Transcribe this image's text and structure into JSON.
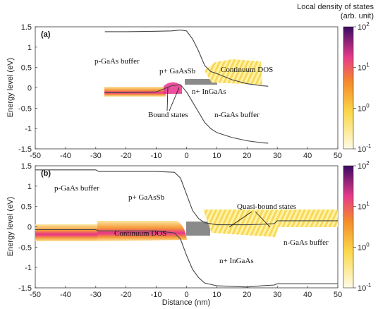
{
  "colorbar": {
    "title": "Local density of states",
    "subtitle": "(arb. unit)",
    "ticks": [
      {
        "base": "10",
        "exp": "2"
      },
      {
        "base": "10",
        "exp": "1"
      },
      {
        "base": "10",
        "exp": "0"
      },
      {
        "base": "10",
        "exp": "-1"
      }
    ]
  },
  "colors": {
    "lowDos": "#fffbd0",
    "midDos": "#f5a623",
    "highDos": "#e8338c",
    "maxDos": "#3a0a5c",
    "bandEdge": "#444444",
    "doping": "#888888"
  },
  "chart_data": [
    {
      "type": "line",
      "panel": "(a)",
      "xlabel": "",
      "ylabel": "Energy level (eV)",
      "xlim": [
        -50,
        50
      ],
      "ylim": [
        -1.5,
        1.5
      ],
      "xticks": [
        -50,
        -40,
        -30,
        -20,
        -10,
        0,
        10,
        20,
        30,
        40,
        50
      ],
      "yticks": [
        -1.5,
        -1,
        -0.5,
        0,
        0.5,
        1,
        1.5
      ],
      "xtick_labels": [
        "-50",
        "-40",
        "-30",
        "-20",
        "-10",
        "0",
        "10",
        "20",
        "30",
        "40",
        "50"
      ],
      "ytick_labels": [
        "-1.5",
        "-1",
        "-0.5",
        "0",
        "0.5",
        "1",
        "1.5"
      ],
      "series": [
        {
          "x": [
            -27,
            -20,
            -10,
            -5,
            -2,
            0,
            2,
            4,
            6,
            8,
            10,
            15,
            20,
            25,
            27
          ],
          "values": [
            1.38,
            1.38,
            1.39,
            1.4,
            1.42,
            1.4,
            1.2,
            0.9,
            0.55,
            0.4,
            0.35,
            0.2,
            0.1,
            0.05,
            0.04
          ]
        },
        {
          "x": [
            -27,
            -20,
            -10,
            -5,
            -2,
            0,
            2,
            4,
            6,
            8,
            10,
            15,
            20,
            25,
            27
          ],
          "values": [
            -0.12,
            -0.12,
            -0.1,
            0.05,
            0.08,
            -0.1,
            -0.35,
            -0.6,
            -0.85,
            -1.0,
            -1.1,
            -1.22,
            -1.3,
            -1.35,
            -1.36
          ]
        }
      ],
      "annotations": [
        "p-GaAs buffer",
        "p+ GaAsSb",
        "Continuum DOS",
        "n+ InGaAs",
        "Bound states",
        "n-GaAs buffer"
      ]
    },
    {
      "type": "line",
      "panel": "(b)",
      "xlabel": "Distance (nm)",
      "ylabel": "Energy level (eV)",
      "xlim": [
        -50,
        50
      ],
      "ylim": [
        -1.5,
        1.5
      ],
      "xticks": [
        -50,
        -40,
        -30,
        -20,
        -10,
        0,
        10,
        20,
        30,
        40,
        50
      ],
      "yticks": [
        -1.5,
        -1,
        -0.5,
        0,
        0.5,
        1,
        1.5
      ],
      "xtick_labels": [
        "-50",
        "-40",
        "-30",
        "-20",
        "-10",
        "0",
        "10",
        "20",
        "30",
        "40",
        "50"
      ],
      "ytick_labels": [
        "-1.5",
        "-1",
        "-0.5",
        "0",
        "0.5",
        "1",
        "1.5"
      ],
      "series": [
        {
          "x": [
            -50,
            -30,
            -29,
            -10,
            -4,
            -2,
            0,
            2,
            4,
            6,
            10,
            20,
            25,
            29,
            30,
            50
          ],
          "values": [
            1.4,
            1.4,
            1.36,
            1.36,
            1.34,
            1.2,
            0.8,
            0.4,
            0.2,
            0.1,
            0.05,
            0.05,
            0.06,
            0.08,
            0.15,
            0.15
          ]
        },
        {
          "x": [
            -50,
            -30,
            -29,
            -10,
            -4,
            -2,
            0,
            2,
            4,
            6,
            10,
            20,
            25,
            29,
            30,
            50
          ],
          "values": [
            -0.07,
            -0.07,
            -0.1,
            -0.1,
            -0.15,
            -0.3,
            -0.7,
            -1.05,
            -1.25,
            -1.38,
            -1.45,
            -1.48,
            -1.45,
            -1.43,
            -1.4,
            -1.4
          ]
        }
      ],
      "annotations": [
        "p-GaAs buffer",
        "p+ GaAsSb",
        "Quasi-bound states",
        "Continuum DOS",
        "n-GaAs buffer",
        "n+ InGaAs"
      ]
    }
  ]
}
